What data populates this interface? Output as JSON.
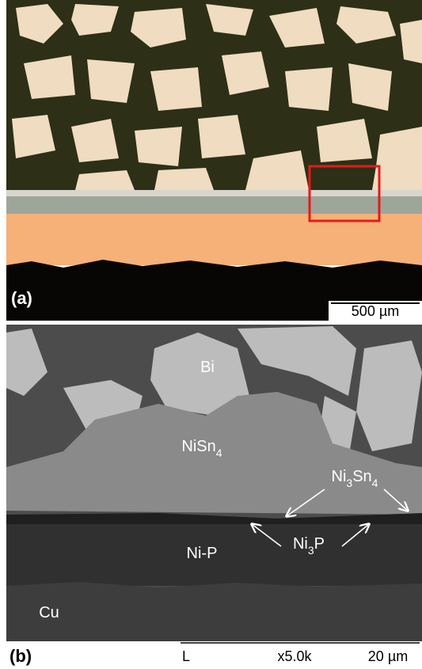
{
  "panel_a": {
    "label": "(a)",
    "scale_bar": "500 µm"
  },
  "panel_b": {
    "label": "(b)",
    "phases": {
      "bi": [
        "Bi"
      ],
      "nisn4": [
        "NiSn",
        "4"
      ],
      "ni3sn4": [
        "Ni",
        "3",
        "Sn",
        "4"
      ],
      "nip": [
        "Ni-P"
      ],
      "ni3p": [
        "Ni",
        "3",
        "P"
      ],
      "cu": [
        "Cu"
      ]
    },
    "info": {
      "marker": "L",
      "magnification": "x5.0k",
      "scale_bar": "20 µm"
    }
  }
}
